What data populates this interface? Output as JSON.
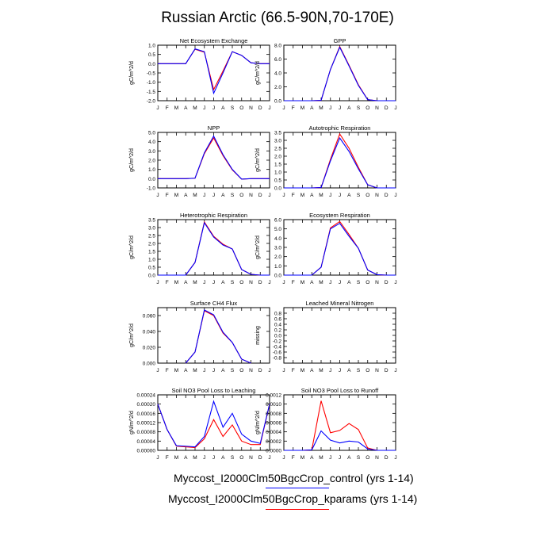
{
  "title": "Russian Arctic (66.5-90N,70-170E)",
  "months": [
    "J",
    "F",
    "M",
    "A",
    "M",
    "J",
    "J",
    "A",
    "S",
    "O",
    "N",
    "D",
    "J"
  ],
  "legend": [
    {
      "label": "Myccost_I2000Clm50BgcCrop_control (yrs 1-14)",
      "color": "#0000ff"
    },
    {
      "label": "Myccost_I2000Clm50BgcCrop_kparams (yrs 1-14)",
      "color": "#ff0000"
    }
  ],
  "chart_data": [
    {
      "type": "line",
      "title": "Net Ecosystem Exchange",
      "ylabel": "gC/m^2/d",
      "ylim": [
        -2.0,
        1.0
      ],
      "yticks": [
        "1.0",
        "0.5",
        "0.0",
        "-0.5",
        "-1.0",
        "-1.5",
        "-2.0"
      ],
      "ytick_values": [
        1.0,
        0.5,
        0.0,
        -0.5,
        -1.0,
        -1.5,
        -2.0
      ],
      "series": [
        {
          "color": "#0000ff",
          "values": [
            0.0,
            0.0,
            0.0,
            0.0,
            0.8,
            0.65,
            -1.6,
            -0.5,
            0.65,
            0.45,
            0.05,
            0.0,
            0.0
          ]
        },
        {
          "color": "#ff0000",
          "values": [
            0.0,
            0.0,
            0.0,
            0.0,
            0.78,
            0.62,
            -1.4,
            -0.4,
            0.65,
            0.45,
            0.05,
            0.0,
            0.0
          ]
        }
      ]
    },
    {
      "type": "line",
      "title": "GPP",
      "ylabel": "gC/m^2/d",
      "ylim": [
        0.0,
        8.0
      ],
      "yticks": [
        "8.0",
        "6.0",
        "4.0",
        "2.0",
        "0.0"
      ],
      "ytick_values": [
        8.0,
        6.0,
        4.0,
        2.0,
        0.0
      ],
      "series": [
        {
          "color": "#0000ff",
          "values": [
            0,
            0,
            0,
            0,
            0.05,
            4.5,
            7.7,
            5.0,
            2.2,
            0.15,
            0,
            0,
            0
          ]
        },
        {
          "color": "#ff0000",
          "values": [
            0,
            0,
            0,
            0,
            0.05,
            4.5,
            7.8,
            5.1,
            2.3,
            0.15,
            0,
            0,
            0
          ]
        }
      ]
    },
    {
      "type": "line",
      "title": "NPP",
      "ylabel": "gC/m^2/d",
      "ylim": [
        -1.0,
        5.0
      ],
      "yticks": [
        "5.0",
        "4.0",
        "3.0",
        "2.0",
        "1.0",
        "0.0",
        "-1.0"
      ],
      "ytick_values": [
        5.0,
        4.0,
        3.0,
        2.0,
        1.0,
        0.0,
        -1.0
      ],
      "series": [
        {
          "color": "#0000ff",
          "values": [
            0,
            0,
            0,
            0,
            0.05,
            2.8,
            4.6,
            2.6,
            1.0,
            -0.05,
            0,
            0,
            0
          ]
        },
        {
          "color": "#ff0000",
          "values": [
            0,
            0,
            0,
            0,
            0.05,
            2.7,
            4.4,
            2.5,
            0.95,
            -0.05,
            0,
            0,
            0
          ]
        }
      ]
    },
    {
      "type": "line",
      "title": "Autotrophic Respiration",
      "ylabel": "gC/m^2/d",
      "ylim": [
        0.0,
        3.5
      ],
      "yticks": [
        "3.5",
        "3.0",
        "2.5",
        "2.0",
        "1.5",
        "1.0",
        "0.5",
        "0.0"
      ],
      "ytick_values": [
        3.5,
        3.0,
        2.5,
        2.0,
        1.5,
        1.0,
        0.5,
        0.0
      ],
      "series": [
        {
          "color": "#0000ff",
          "values": [
            0,
            0,
            0,
            0,
            0.02,
            1.7,
            3.15,
            2.3,
            1.2,
            0.2,
            0,
            0,
            0
          ]
        },
        {
          "color": "#ff0000",
          "values": [
            0,
            0,
            0,
            0,
            0.02,
            1.8,
            3.4,
            2.5,
            1.3,
            0.2,
            0,
            0,
            0
          ]
        }
      ]
    },
    {
      "type": "line",
      "title": "Heterotrophic Respiration",
      "ylabel": "gC/m^2/d",
      "ylim": [
        0.0,
        3.5
      ],
      "yticks": [
        "3.5",
        "3.0",
        "2.5",
        "2.0",
        "1.5",
        "1.0",
        "0.5",
        "0.0"
      ],
      "ytick_values": [
        3.5,
        3.0,
        2.5,
        2.0,
        1.5,
        1.0,
        0.5,
        0.0
      ],
      "series": [
        {
          "color": "#0000ff",
          "values": [
            0,
            0,
            0,
            0,
            0.8,
            3.3,
            2.4,
            1.9,
            1.65,
            0.35,
            0.05,
            0,
            0
          ]
        },
        {
          "color": "#ff0000",
          "values": [
            0,
            0,
            0,
            0,
            0.8,
            3.35,
            2.45,
            1.95,
            1.65,
            0.35,
            0.05,
            0,
            0
          ]
        }
      ]
    },
    {
      "type": "line",
      "title": "Ecosystem Respiration",
      "ylabel": "gC/m^2/d",
      "ylim": [
        0.0,
        6.0
      ],
      "yticks": [
        "6.0",
        "5.0",
        "4.0",
        "3.0",
        "2.0",
        "1.0",
        "0.0"
      ],
      "ytick_values": [
        6.0,
        5.0,
        4.0,
        3.0,
        2.0,
        1.0,
        0.0
      ],
      "series": [
        {
          "color": "#0000ff",
          "values": [
            0,
            0,
            0,
            0,
            0.85,
            5.0,
            5.6,
            4.2,
            2.9,
            0.55,
            0.05,
            0,
            0
          ]
        },
        {
          "color": "#ff0000",
          "values": [
            0,
            0,
            0,
            0,
            0.85,
            5.1,
            5.8,
            4.4,
            2.9,
            0.55,
            0.05,
            0,
            0
          ]
        }
      ]
    },
    {
      "type": "line",
      "title": "Surface CH4 Flux",
      "ylabel": "gC/m^2/d",
      "ylim": [
        0.0,
        0.07
      ],
      "yticks": [
        "0.060",
        "0.040",
        "0.020",
        "0.000"
      ],
      "ytick_values": [
        0.06,
        0.04,
        0.02,
        0.0
      ],
      "series": [
        {
          "color": "#0000ff",
          "values": [
            null,
            null,
            null,
            0.0,
            0.014,
            0.067,
            0.061,
            0.039,
            0.026,
            0.005,
            0.0,
            null,
            null
          ]
        },
        {
          "color": "#ff0000",
          "values": [
            null,
            null,
            null,
            0.0,
            0.014,
            0.066,
            0.06,
            0.038,
            0.026,
            0.005,
            0.0,
            null,
            null
          ]
        }
      ]
    },
    {
      "type": "line",
      "title": "Leached Mineral Nitrogen",
      "ylabel": "missing",
      "ylim": [
        -1.0,
        1.0
      ],
      "yticks": [
        "0.8",
        "0.6",
        "0.4",
        "0.2",
        "0.0",
        "-0.2",
        "-0.4",
        "-0.6",
        "-0.8"
      ],
      "ytick_values": [
        0.8,
        0.6,
        0.4,
        0.2,
        0.0,
        -0.2,
        -0.4,
        -0.6,
        -0.8
      ],
      "series": []
    },
    {
      "type": "line",
      "title": "Soil NO3 Pool Loss to Leaching",
      "ylabel": "gN/m^2/d",
      "ylim": [
        0.0,
        0.00024
      ],
      "yticks": [
        "0.00024",
        "0.00020",
        "0.00016",
        "0.00012",
        "0.00008",
        "0.00004",
        "0.00000"
      ],
      "ytick_values": [
        0.00024,
        0.0002,
        0.00016,
        0.00012,
        8e-05,
        4e-05,
        0.0
      ],
      "series": [
        {
          "color": "#0000ff",
          "values": [
            0.0002,
            9e-05,
            2e-05,
            1.8e-05,
            1.5e-05,
            6e-05,
            0.000212,
            0.0001,
            0.00016,
            7e-05,
            4e-05,
            3e-05,
            0.0002
          ]
        },
        {
          "color": "#ff0000",
          "values": [
            0.0002,
            9e-05,
            1.8e-05,
            1.5e-05,
            1.2e-05,
            5e-05,
            0.000133,
            6e-05,
            0.00011,
            4e-05,
            2.5e-05,
            2.5e-05,
            0.0002
          ]
        }
      ]
    },
    {
      "type": "line",
      "title": "Soil NO3 Pool Loss to Runoff",
      "ylabel": "gN/m^2/d",
      "ylim": [
        0.0,
        0.0012
      ],
      "yticks": [
        "0.0012",
        "0.0010",
        "0.0008",
        "0.0006",
        "0.0004",
        "0.0002",
        "0.0000"
      ],
      "ytick_values": [
        0.0012,
        0.001,
        0.0008,
        0.0006,
        0.0004,
        0.0002,
        0.0
      ],
      "series": [
        {
          "color": "#0000ff",
          "values": [
            0,
            0,
            0,
            1e-05,
            0.00042,
            0.00022,
            0.00016,
            0.0002,
            0.00018,
            3e-05,
            0,
            0,
            0
          ]
        },
        {
          "color": "#ff0000",
          "values": [
            0,
            0,
            0,
            1e-05,
            0.00107,
            0.00038,
            0.00043,
            0.00058,
            0.00045,
            5e-05,
            0,
            0,
            0
          ]
        }
      ]
    }
  ]
}
